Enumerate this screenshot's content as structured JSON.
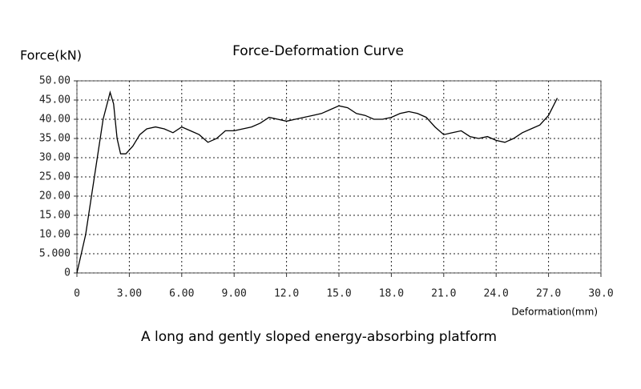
{
  "chart_data": {
    "type": "line",
    "title": "Force-Deformation Curve",
    "y_label": "Force(kN)",
    "x_label": "Deformation(mm)",
    "caption": "A long and gently sloped energy-absorbing platform",
    "x": [
      0,
      0.5,
      1.0,
      1.5,
      1.9,
      2.1,
      2.3,
      2.5,
      2.8,
      3.2,
      3.6,
      4.0,
      4.5,
      5.0,
      5.5,
      6.0,
      6.5,
      7.0,
      7.5,
      8.0,
      8.5,
      9.0,
      9.5,
      10.0,
      10.5,
      11.0,
      11.5,
      12.0,
      12.5,
      13.0,
      13.5,
      14.0,
      14.5,
      15.0,
      15.5,
      16.0,
      16.5,
      17.0,
      17.5,
      18.0,
      18.5,
      19.0,
      19.5,
      20.0,
      20.5,
      21.0,
      21.5,
      22.0,
      22.5,
      23.0,
      23.5,
      24.0,
      24.5,
      25.0,
      25.5,
      26.0,
      26.5,
      27.0,
      27.5
    ],
    "series": [
      {
        "color": "#000000",
        "values": [
          0,
          10,
          25,
          40,
          47,
          44,
          35,
          31,
          31,
          33,
          36,
          37.5,
          38,
          37.5,
          36.5,
          38,
          37,
          36,
          34,
          35,
          37,
          37,
          37.5,
          38,
          39,
          40.5,
          40,
          39.5,
          40,
          40.5,
          41,
          41.5,
          42.5,
          43.5,
          43,
          41.5,
          41,
          40,
          40,
          40.5,
          41.5,
          42,
          41.5,
          40.5,
          38,
          36,
          36.5,
          37,
          35.5,
          35,
          35.5,
          34.5,
          34,
          35,
          36.5,
          37.5,
          38.5,
          41,
          45.5
        ]
      }
    ],
    "xlim": [
      0,
      30
    ],
    "xticks": [
      0,
      {
        "value": 3,
        "label": "3.00"
      },
      {
        "value": 6,
        "label": "6.00"
      },
      {
        "value": 9,
        "label": "9.00"
      },
      {
        "value": 12,
        "label": "12.0"
      },
      {
        "value": 15,
        "label": "15.0"
      },
      {
        "value": 18,
        "label": "18.0"
      },
      {
        "value": 21,
        "label": "21.0"
      },
      {
        "value": 24,
        "label": "24.0"
      },
      {
        "value": 27,
        "label": "27.0"
      },
      {
        "value": 30,
        "label": "30.0"
      }
    ],
    "ylim": [
      0,
      50
    ],
    "yticks": [
      0,
      {
        "value": 5,
        "label": "5.000"
      },
      {
        "value": 10,
        "label": "10.00"
      },
      {
        "value": 15,
        "label": "15.00"
      },
      {
        "value": 20,
        "label": "20.00"
      },
      {
        "value": 25,
        "label": "25.00"
      },
      {
        "value": 30,
        "label": "30.00"
      },
      {
        "value": 35,
        "label": "35.00"
      },
      {
        "value": 40,
        "label": "40.00"
      },
      {
        "value": 45,
        "label": "45.00"
      },
      {
        "value": 50,
        "label": "50.00"
      }
    ],
    "grid": true
  }
}
